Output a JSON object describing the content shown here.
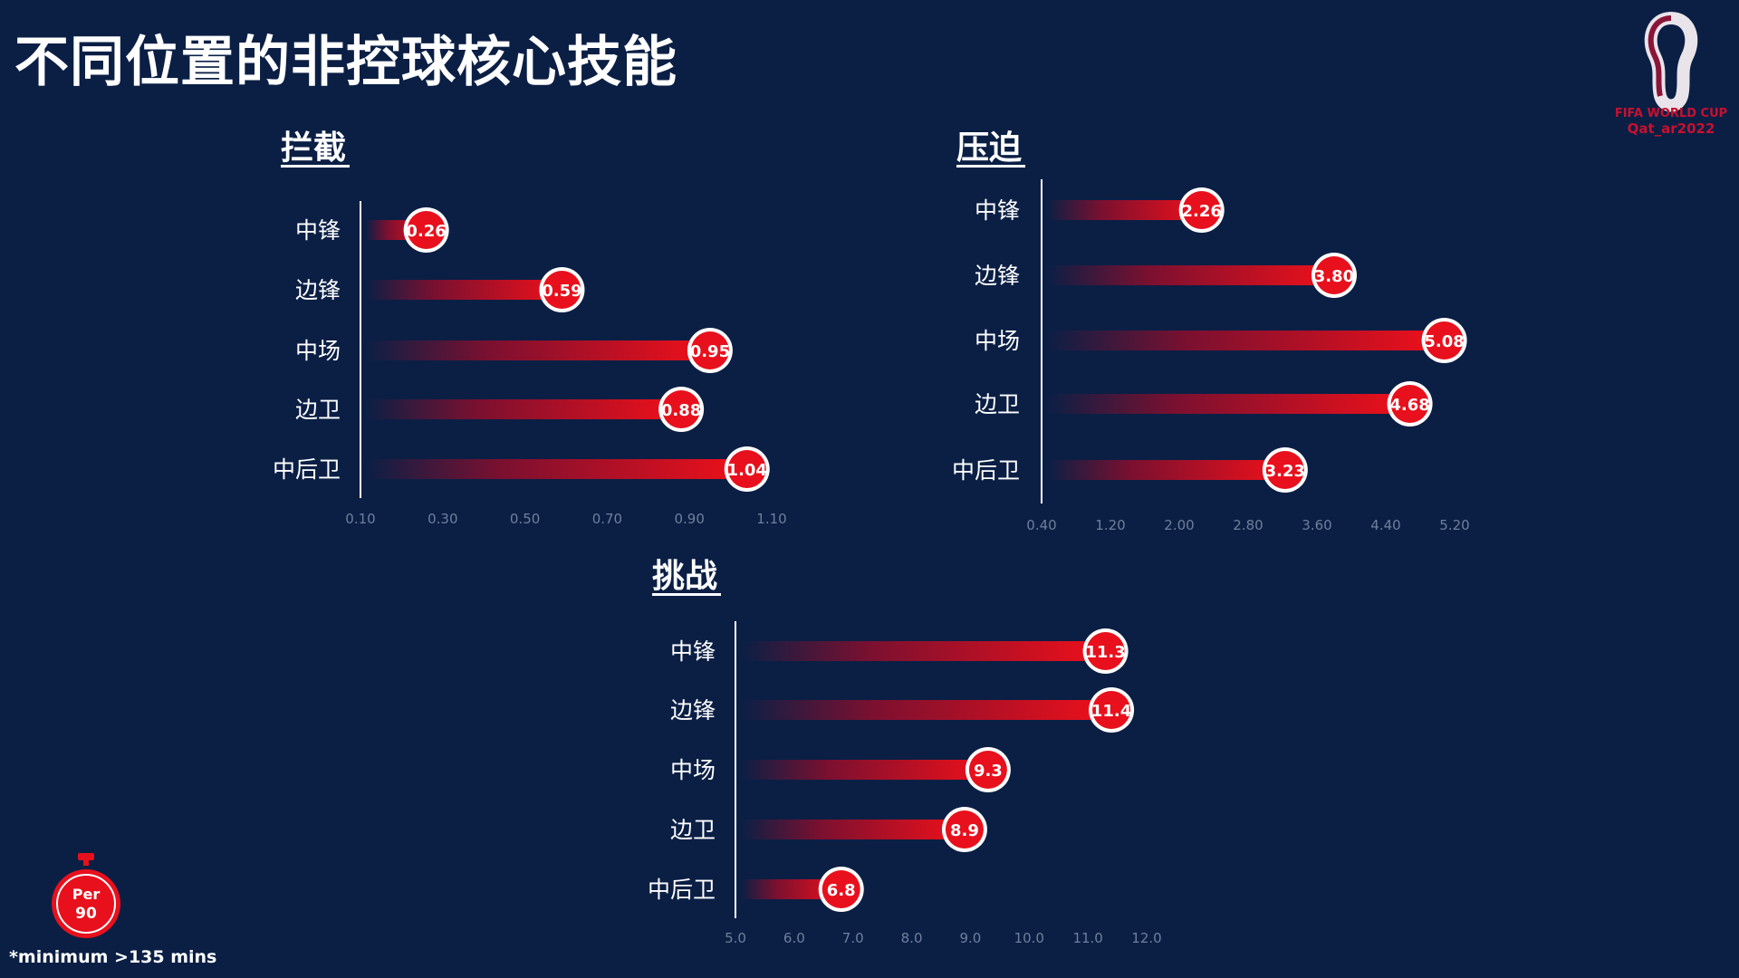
{
  "title": "不同位置的非控球核心技能",
  "logo": {
    "line1": "FIFA WORLD CUP",
    "line2": "Qat_ar2022"
  },
  "footnote": "*minimum >135 mins",
  "badge": {
    "line1": "Per",
    "line2": "90"
  },
  "colors": {
    "background": "#0b1f45",
    "bar": "#e8101c",
    "tick": "#6f7f9c"
  },
  "chart_data": [
    {
      "type": "bar",
      "orientation": "horizontal",
      "title": "拦截",
      "categories": [
        "中锋",
        "边锋",
        "中场",
        "边卫",
        "中后卫"
      ],
      "values": [
        0.26,
        0.59,
        0.95,
        0.88,
        1.04
      ],
      "value_labels": [
        "0.26",
        "0.59",
        "0.95",
        "0.88",
        "1.04"
      ],
      "xlim": [
        0.1,
        1.1
      ],
      "ticks": [
        "0.10",
        "0.30",
        "0.50",
        "0.70",
        "0.90",
        "1.10"
      ]
    },
    {
      "type": "bar",
      "orientation": "horizontal",
      "title": "压迫",
      "categories": [
        "中锋",
        "边锋",
        "中场",
        "边卫",
        "中后卫"
      ],
      "values": [
        2.26,
        3.8,
        5.08,
        4.68,
        3.23
      ],
      "value_labels": [
        "2.26",
        "3.80",
        "5.08",
        "4.68",
        "3.23"
      ],
      "xlim": [
        0.4,
        5.2
      ],
      "ticks": [
        "0.40",
        "1.20",
        "2.00",
        "2.80",
        "3.60",
        "4.40",
        "5.20"
      ]
    },
    {
      "type": "bar",
      "orientation": "horizontal",
      "title": "挑战",
      "categories": [
        "中锋",
        "边锋",
        "中场",
        "边卫",
        "中后卫"
      ],
      "values": [
        11.3,
        11.4,
        9.3,
        8.9,
        6.8
      ],
      "value_labels": [
        "11.3",
        "11.4",
        "9.3",
        "8.9",
        "6.8"
      ],
      "xlim": [
        5.0,
        12.0
      ],
      "ticks": [
        "5.0",
        "6.0",
        "7.0",
        "8.0",
        "9.0",
        "10.0",
        "11.0",
        "12.0"
      ]
    }
  ]
}
